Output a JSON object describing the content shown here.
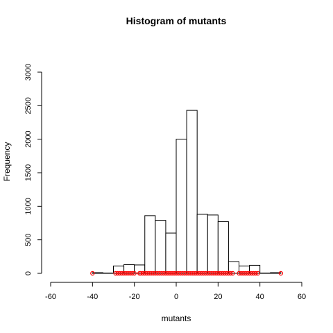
{
  "chart_data": {
    "type": "bar",
    "title": "Histogram of mutants",
    "xlabel": "mutants",
    "ylabel": "Frequency",
    "xlim": [
      -60,
      60
    ],
    "ylim": [
      0,
      3000
    ],
    "x_ticks": [
      -60,
      -40,
      -20,
      0,
      20,
      40,
      60
    ],
    "y_ticks": [
      0,
      500,
      1000,
      1500,
      2000,
      2500,
      3000
    ],
    "bin_width": 5,
    "bins": [
      {
        "x0": -40,
        "x1": -35,
        "count": 10
      },
      {
        "x0": -35,
        "x1": -30,
        "count": 5
      },
      {
        "x0": -30,
        "x1": -25,
        "count": 110
      },
      {
        "x0": -25,
        "x1": -20,
        "count": 130
      },
      {
        "x0": -20,
        "x1": -15,
        "count": 125
      },
      {
        "x0": -15,
        "x1": -10,
        "count": 860
      },
      {
        "x0": -10,
        "x1": -5,
        "count": 790
      },
      {
        "x0": -5,
        "x1": 0,
        "count": 600
      },
      {
        "x0": 0,
        "x1": 5,
        "count": 2000
      },
      {
        "x0": 5,
        "x1": 10,
        "count": 2430
      },
      {
        "x0": 10,
        "x1": 15,
        "count": 880
      },
      {
        "x0": 15,
        "x1": 20,
        "count": 870
      },
      {
        "x0": 20,
        "x1": 25,
        "count": 770
      },
      {
        "x0": 25,
        "x1": 30,
        "count": 175
      },
      {
        "x0": 30,
        "x1": 35,
        "count": 110
      },
      {
        "x0": 35,
        "x1": 40,
        "count": 120
      },
      {
        "x0": 40,
        "x1": 45,
        "count": 5
      },
      {
        "x0": 45,
        "x1": 50,
        "count": 10
      }
    ],
    "rug_points": {
      "color": "#ff0000",
      "y": 0,
      "x": [
        -40,
        -29,
        -28,
        -27,
        -26,
        -25,
        -24,
        -23,
        -22,
        -21,
        -20,
        -17.5,
        -17,
        -16,
        -15,
        -14,
        -13,
        -12,
        -11,
        -10,
        -9,
        -8,
        -7,
        -6,
        -5,
        -4,
        -3,
        -2,
        -1,
        0,
        1,
        2,
        3,
        4,
        5,
        6,
        7,
        8,
        9,
        10,
        11,
        12,
        13,
        14,
        15,
        16,
        17,
        18,
        19,
        20,
        21,
        22,
        23,
        24,
        25,
        26,
        27,
        30,
        31,
        32,
        33,
        34,
        35,
        36,
        37,
        38,
        39,
        50
      ]
    },
    "grid": false
  }
}
